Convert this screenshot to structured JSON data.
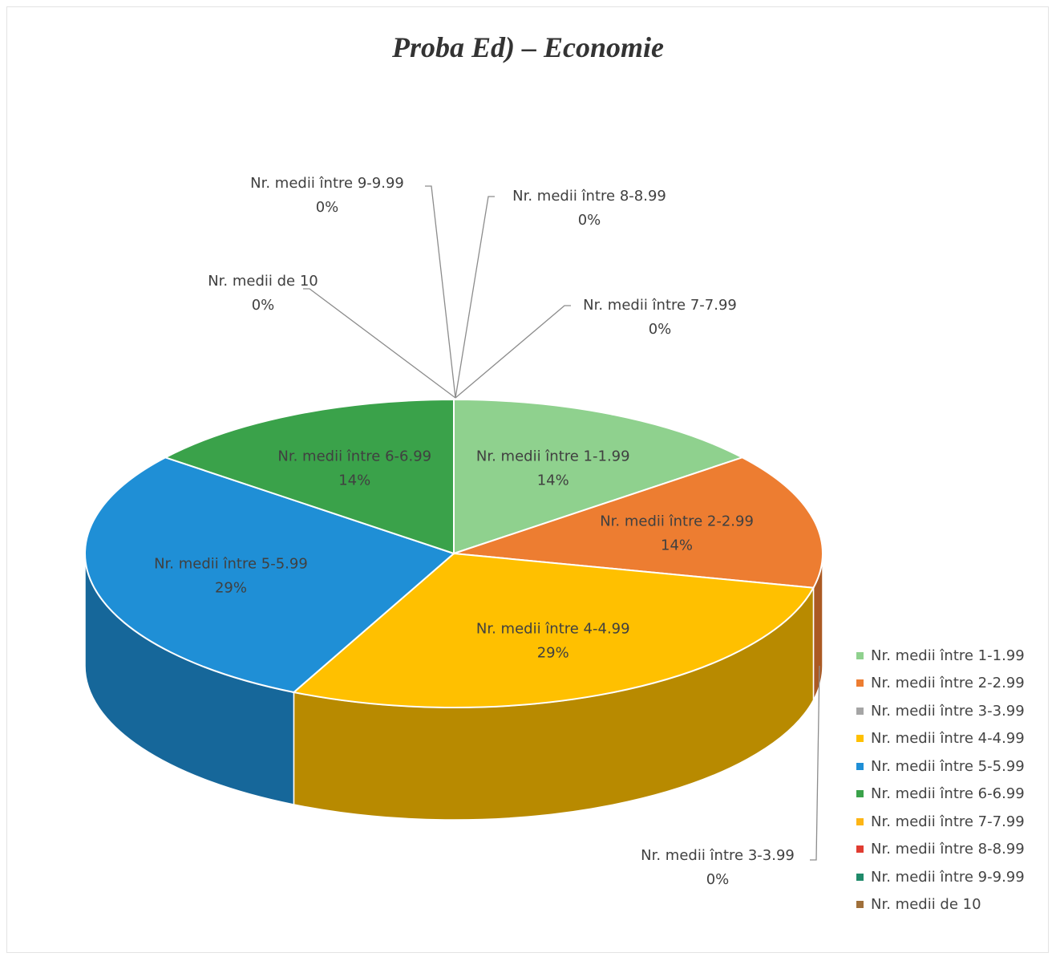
{
  "chart_data": {
    "type": "pie",
    "title": "Proba Ed) – Economie",
    "categories": [
      "Nr. medii între 1-1.99",
      "Nr. medii între 2-2.99",
      "Nr. medii între 3-3.99",
      "Nr. medii între 4-4.99",
      "Nr. medii între 5-5.99",
      "Nr. medii între 6-6.99",
      "Nr. medii între 7-7.99",
      "Nr. medii între 8-8.99",
      "Nr. medii între 9-9.99",
      "Nr. medii de 10"
    ],
    "values": [
      1,
      1,
      0,
      2,
      2,
      1,
      0,
      0,
      0,
      0
    ],
    "percent_labels": [
      "14%",
      "14%",
      "0%",
      "29%",
      "29%",
      "14%",
      "0%",
      "0%",
      "0%",
      "0%"
    ],
    "colors": [
      "#8fd18e",
      "#ed7d31",
      "#a5a5a5",
      "#ffc000",
      "#1f8fd6",
      "#3aa24a",
      "#fdb515",
      "#e03c31",
      "#1f8a6a",
      "#a0703a"
    ],
    "legend_position": "right",
    "style": "3d-pie"
  }
}
